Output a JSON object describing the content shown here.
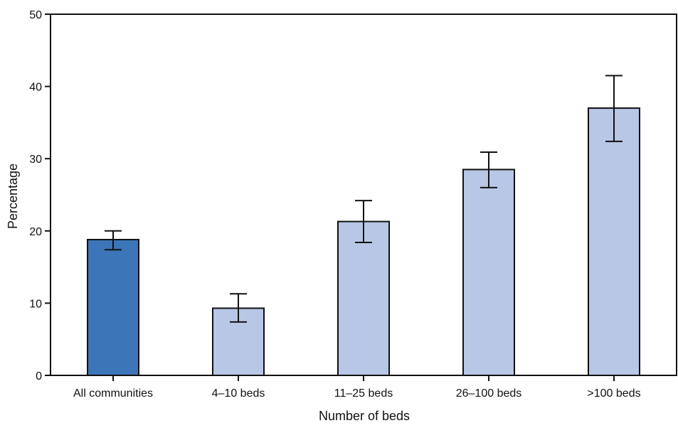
{
  "chart_data": {
    "type": "bar",
    "title": "",
    "xlabel": "Number of beds",
    "ylabel": "Percentage",
    "ylim": [
      0,
      50
    ],
    "yticks": [
      0,
      10,
      20,
      30,
      40,
      50
    ],
    "grid": false,
    "legend": "none",
    "categories": [
      "All communities",
      "4–10 beds",
      "11–25 beds",
      "26–100 beds",
      ">100 beds"
    ],
    "values": [
      18.8,
      9.3,
      21.3,
      28.5,
      37.0
    ],
    "ci_lower": [
      17.4,
      7.4,
      18.4,
      26.0,
      32.4
    ],
    "ci_upper": [
      20.0,
      11.3,
      24.2,
      30.9,
      41.5
    ],
    "colors": {
      "highlight_bar": "#3c76b8",
      "bar": "#b8c7e6",
      "outline": "#111111"
    },
    "bar_colors": [
      "highlight_bar",
      "bar",
      "bar",
      "bar",
      "bar"
    ]
  }
}
